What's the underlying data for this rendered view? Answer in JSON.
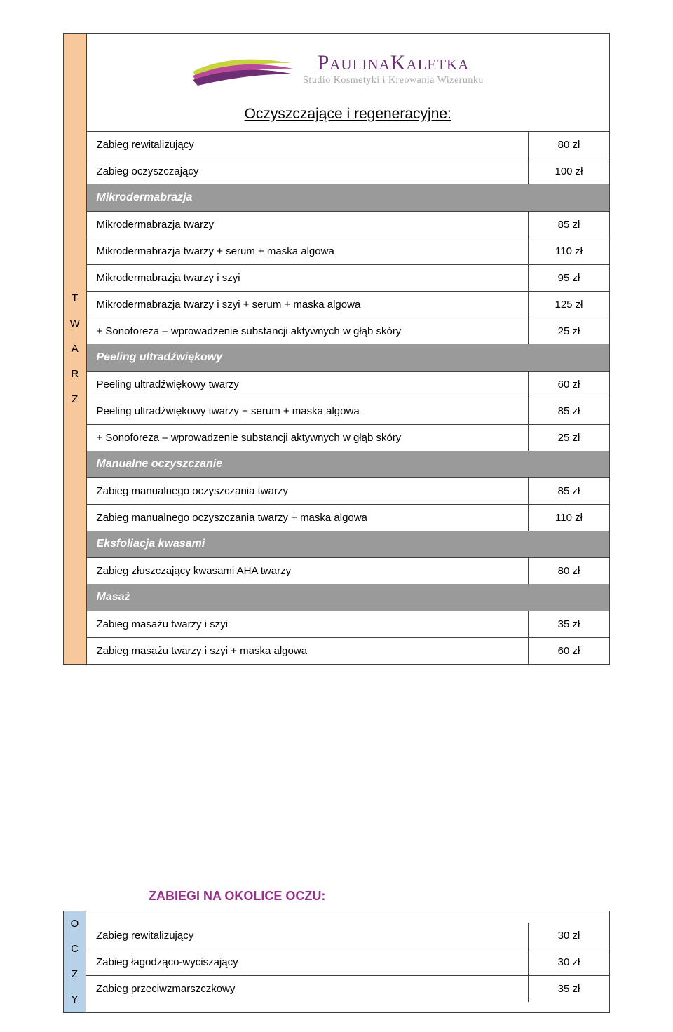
{
  "logo": {
    "name": "PaulinaKaletka",
    "sub": "Studio Kosmetyki i Kreowania Wizerunku",
    "feather_colors": [
      "#c7d43d",
      "#b94a9a",
      "#6d2e73"
    ]
  },
  "spine1": "T\nW\nA\nR\nZ",
  "title": "Oczyszczające i regeneracyjne:",
  "rows_top": [
    {
      "label": "Zabieg rewitalizujący",
      "price": "80 zł"
    },
    {
      "label": "Zabieg oczyszczający",
      "price": "100 zł"
    }
  ],
  "sec_mikro": "Mikrodermabrazja",
  "rows_mikro": [
    {
      "label": "Mikrodermabrazja twarzy",
      "price": "85 zł"
    },
    {
      "label": "Mikrodermabrazja twarzy + serum + maska algowa",
      "price": "110 zł"
    },
    {
      "label": "Mikrodermabrazja twarzy i szyi",
      "price": "95 zł"
    },
    {
      "label": "Mikrodermabrazja twarzy i szyi + serum + maska algowa",
      "price": "125 zł"
    },
    {
      "label": "+ Sonoforeza – wprowadzenie substancji aktywnych w głąb skóry",
      "price": "25 zł"
    }
  ],
  "sec_peel": "Peeling ultradźwiękowy",
  "rows_peel": [
    {
      "label": "Peeling ultradźwiękowy twarzy",
      "price": "60 zł"
    },
    {
      "label": "Peeling ultradźwiękowy twarzy + serum + maska algowa",
      "price": "85 zł"
    },
    {
      "label": "+ Sonoforeza – wprowadzenie substancji aktywnych w głąb skóry",
      "price": "25 zł"
    }
  ],
  "sec_manual": "Manualne oczyszczanie",
  "rows_manual": [
    {
      "label": "Zabieg manualnego oczyszczania twarzy",
      "price": "85 zł"
    },
    {
      "label": "Zabieg manualnego oczyszczania twarzy + maska algowa",
      "price": "110 zł"
    }
  ],
  "sec_eks": "Eksfoliacja kwasami",
  "rows_eks": [
    {
      "label": "Zabieg złuszczający kwasami AHA twarzy",
      "price": "80 zł"
    }
  ],
  "sec_mas": "Masaż",
  "rows_mas": [
    {
      "label": "Zabieg masażu twarzy i szyi",
      "price": "35 zł"
    },
    {
      "label": "Zabieg masażu twarzy i szyi + maska algowa",
      "price": "60 zł"
    }
  ],
  "block2_title": "ZABIEGI NA OKOLICE OCZU:",
  "spine2": "O\nC\nZ\nY",
  "rows_oczy": [
    {
      "label": "Zabieg rewitalizujący",
      "price": "30 zł"
    },
    {
      "label": "Zabieg łagodząco-wyciszający",
      "price": "30 zł"
    },
    {
      "label": "Zabieg przeciwzmarszczkowy",
      "price": "35 zł"
    }
  ]
}
